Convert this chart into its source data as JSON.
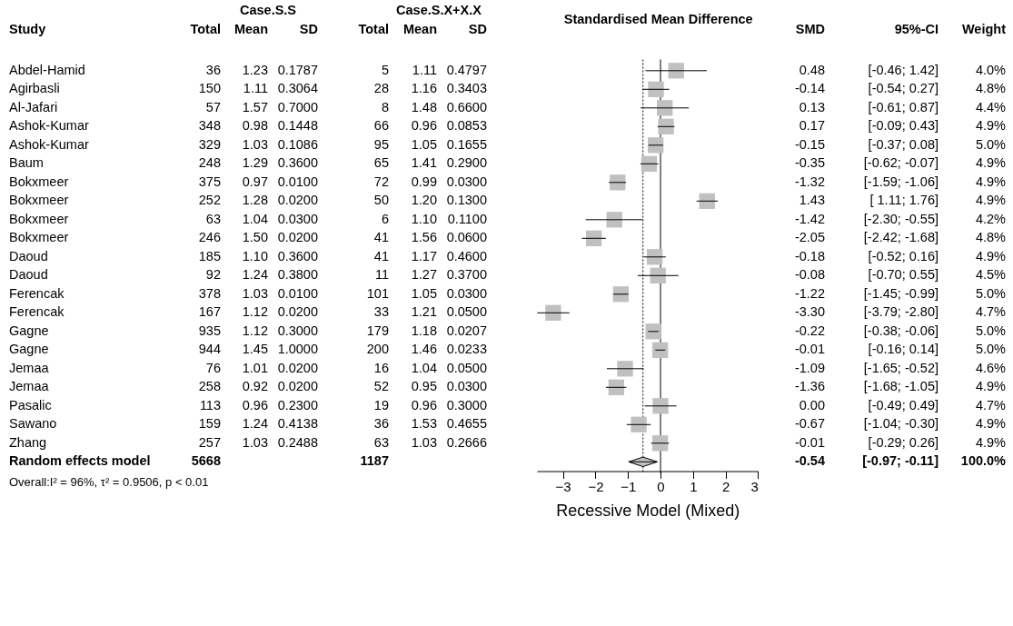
{
  "chart_data": [
    {
      "type": "other",
      "ylabel": "Study",
      "categories": [
        "Abdel-Hamid",
        "Agirbasli",
        "Al-Jafari",
        "Ashok-Kumar",
        "Ashok-Kumar",
        "Baum",
        "Bokxmeer",
        "Bokxmeer",
        "Bokxmeer",
        "Bokxmeer",
        "Daoud",
        "Daoud",
        "Ferencak",
        "Ferencak",
        "Gagne",
        "Gagne",
        "Jemaa",
        "Jemaa",
        "Pasalic",
        "Sawano",
        "Zhang",
        "Random effects model"
      ],
      "series": [
        {
          "name": "Total",
          "values": [
            36,
            150,
            57,
            348,
            329,
            248,
            375,
            252,
            63,
            246,
            185,
            92,
            378,
            167,
            935,
            944,
            76,
            258,
            113,
            159,
            257,
            5668
          ],
          "value_labels": [
            "36",
            "150",
            "57",
            "348",
            "329",
            "248",
            "375",
            "252",
            "63",
            "246",
            "185",
            "92",
            "378",
            "167",
            "935",
            "944",
            "76",
            "258",
            "113",
            "159",
            "257",
            "5668"
          ]
        },
        {
          "name": "Mean",
          "values": [
            1.23,
            1.11,
            1.57,
            0.98,
            1.03,
            1.29,
            0.97,
            1.28,
            1.04,
            1.5,
            1.1,
            1.24,
            1.03,
            1.12,
            1.12,
            1.45,
            1.01,
            0.92,
            0.96,
            1.24,
            1.03,
            null
          ],
          "value_labels": [
            "1.23",
            "1.11",
            "1.57",
            "0.98",
            "1.03",
            "1.29",
            "0.97",
            "1.28",
            "1.04",
            "1.50",
            "1.10",
            "1.24",
            "1.03",
            "1.12",
            "1.12",
            "1.45",
            "1.01",
            "0.92",
            "0.96",
            "1.24",
            "1.03",
            null
          ]
        },
        {
          "name": "SD",
          "values": [
            0.1787,
            0.3064,
            0.7,
            0.1448,
            0.1086,
            0.36,
            0.01,
            0.02,
            0.03,
            0.02,
            0.36,
            0.38,
            0.01,
            0.02,
            0.3,
            1.0,
            0.02,
            0.02,
            0.23,
            0.4138,
            0.2488,
            null
          ],
          "value_labels": [
            "0.1787",
            "0.3064",
            "0.7000",
            "0.1448",
            "0.1086",
            "0.3600",
            "0.0100",
            "0.0200",
            "0.0300",
            "0.0200",
            "0.3600",
            "0.3800",
            "0.0100",
            "0.0200",
            "0.3000",
            "1.0000",
            "0.0200",
            "0.0200",
            "0.2300",
            "0.4138",
            "0.2488",
            null
          ]
        },
        {
          "name": "Total",
          "values": [
            5,
            28,
            8,
            66,
            95,
            65,
            72,
            50,
            6,
            41,
            41,
            11,
            101,
            33,
            179,
            200,
            16,
            52,
            19,
            36,
            63,
            1187
          ],
          "value_labels": [
            "5",
            "28",
            "8",
            "66",
            "95",
            "65",
            "72",
            "50",
            "6",
            "41",
            "41",
            "11",
            "101",
            "33",
            "179",
            "200",
            "16",
            "52",
            "19",
            "36",
            "63",
            "1187"
          ]
        },
        {
          "name": "Mean",
          "values": [
            1.11,
            1.16,
            1.48,
            0.96,
            1.05,
            1.41,
            0.99,
            1.2,
            1.1,
            1.56,
            1.17,
            1.27,
            1.05,
            1.21,
            1.18,
            1.46,
            1.04,
            0.95,
            0.96,
            1.53,
            1.03,
            null
          ],
          "value_labels": [
            "1.11",
            "1.16",
            "1.48",
            "0.96",
            "1.05",
            "1.41",
            "0.99",
            "1.20",
            "1.10",
            "1.56",
            "1.17",
            "1.27",
            "1.05",
            "1.21",
            "1.18",
            "1.46",
            "1.04",
            "0.95",
            "0.96",
            "1.53",
            "1.03",
            null
          ]
        },
        {
          "name": "SD",
          "values": [
            0.4797,
            0.3403,
            0.66,
            0.0853,
            0.1655,
            0.29,
            0.03,
            0.13,
            0.11,
            0.06,
            0.46,
            0.37,
            0.03,
            0.05,
            0.0207,
            0.0233,
            0.05,
            0.03,
            0.3,
            0.4655,
            0.2666,
            null
          ],
          "value_labels": [
            "0.4797",
            "0.3403",
            "0.6600",
            "0.0853",
            "0.1655",
            "0.2900",
            "0.0300",
            "0.1300",
            "0.1100",
            "0.0600",
            "0.4600",
            "0.3700",
            "0.0300",
            "0.0500",
            "0.0207",
            "0.0233",
            "0.0500",
            "0.0300",
            "0.3000",
            "0.4655",
            "0.2666",
            null
          ]
        },
        {
          "name": "SMD",
          "values": [
            0.48,
            -0.14,
            0.13,
            0.17,
            -0.15,
            -0.35,
            -1.32,
            1.43,
            -1.42,
            -2.05,
            -0.18,
            -0.08,
            -1.22,
            -3.3,
            -0.22,
            -0.01,
            -1.09,
            -1.36,
            0.0,
            -0.67,
            -0.01,
            -0.54
          ],
          "value_labels": [
            "0.48",
            "-0.14",
            "0.13",
            "0.17",
            "-0.15",
            "-0.35",
            "-1.32",
            "1.43",
            "-1.42",
            "-2.05",
            "-0.18",
            "-0.08",
            "-1.22",
            "-3.30",
            "-0.22",
            "-0.01",
            "-1.09",
            "-1.36",
            "0.00",
            "-0.67",
            "-0.01",
            "-0.54"
          ]
        },
        {
          "name": "95%-CI",
          "values": [
            null,
            null,
            null,
            null,
            null,
            null,
            null,
            null,
            null,
            null,
            null,
            null,
            null,
            null,
            null,
            null,
            null,
            null,
            null,
            null,
            null,
            null
          ],
          "value_labels": [
            "[-0.46; 1.42]",
            "[-0.54; 0.27]",
            "[-0.61; 0.87]",
            "[-0.09; 0.43]",
            "[-0.37; 0.08]",
            "[-0.62; -0.07]",
            "[-1.59; -1.06]",
            "[ 1.11; 1.76]",
            "[-2.30; -0.55]",
            "[-2.42; -1.68]",
            "[-0.52; 0.16]",
            "[-0.70; 0.55]",
            "[-1.45; -0.99]",
            "[-3.79; -2.80]",
            "[-0.38; -0.06]",
            "[-0.16; 0.14]",
            "[-1.65; -0.52]",
            "[-1.68; -1.05]",
            "[-0.49; 0.49]",
            "[-1.04; -0.30]",
            "[-0.29; 0.26]",
            "[-0.97; -0.11]"
          ]
        },
        {
          "name": "Weight",
          "values": [
            4.0,
            4.8,
            4.4,
            4.9,
            5.0,
            4.9,
            4.9,
            4.9,
            4.2,
            4.8,
            4.9,
            4.5,
            5.0,
            4.7,
            5.0,
            5.0,
            4.6,
            4.9,
            4.7,
            4.9,
            4.9,
            100.0
          ],
          "value_labels": [
            "4.0%",
            "4.8%",
            "4.4%",
            "4.9%",
            "5.0%",
            "4.9%",
            "4.9%",
            "4.9%",
            "4.2%",
            "4.8%",
            "4.9%",
            "4.5%",
            "5.0%",
            "4.7%",
            "5.0%",
            "5.0%",
            "4.6%",
            "4.9%",
            "4.7%",
            "4.9%",
            "4.9%",
            "100.0%"
          ]
        }
      ],
      "annotations": [
        "Case.S.S",
        "Case.S.X+X.X",
        "Overall:I² = 96%, τ² = 0.9506, p < 0.01"
      ]
    },
    {
      "type": "scatter",
      "title": "Standardised Mean Difference",
      "xlabel": "Recessive Model (Mixed)",
      "orientation": "horizontal",
      "tick_labels": "x",
      "grid": false,
      "categories": [
        null,
        null,
        null,
        null,
        null,
        null,
        null,
        null,
        null,
        null,
        null,
        null,
        null,
        null,
        null,
        null,
        null,
        null,
        null,
        null,
        null,
        null
      ],
      "xlim": [
        -3.8,
        3
      ],
      "xticks": [
        -3,
        -2,
        -1,
        0,
        1,
        2,
        3
      ],
      "series": [
        {
          "color": "#c0c0c0",
          "marker": "square",
          "values": [
            0.48,
            -0.14,
            0.13,
            0.17,
            -0.15,
            -0.35,
            -1.32,
            1.43,
            -1.42,
            -2.05,
            -0.18,
            -0.08,
            -1.22,
            -3.3,
            -0.22,
            -0.01,
            -1.09,
            -1.36,
            0.0,
            -0.67,
            -0.01,
            null
          ],
          "errors": [
            [
              -0.46,
              1.42
            ],
            [
              -0.54,
              0.27
            ],
            [
              -0.61,
              0.87
            ],
            [
              -0.09,
              0.43
            ],
            [
              -0.37,
              0.08
            ],
            [
              -0.62,
              -0.07
            ],
            [
              -1.59,
              -1.06
            ],
            [
              1.11,
              1.76
            ],
            [
              -2.3,
              -0.55
            ],
            [
              -2.42,
              -1.68
            ],
            [
              -0.52,
              0.16
            ],
            [
              -0.7,
              0.55
            ],
            [
              -1.45,
              -0.99
            ],
            [
              -3.79,
              -2.8
            ],
            [
              -0.38,
              -0.06
            ],
            [
              -0.16,
              0.14
            ],
            [
              -1.65,
              -0.52
            ],
            [
              -1.68,
              -1.05
            ],
            [
              -0.49,
              0.49
            ],
            [
              -1.04,
              -0.3
            ],
            [
              -0.29,
              0.26
            ],
            null
          ]
        },
        {
          "color": "#c0c0c0",
          "marker": "diamond",
          "values": [
            null,
            null,
            null,
            null,
            null,
            null,
            null,
            null,
            null,
            null,
            null,
            null,
            null,
            null,
            null,
            null,
            null,
            null,
            null,
            null,
            null,
            -0.54
          ],
          "errors": [
            null,
            null,
            null,
            null,
            null,
            null,
            null,
            null,
            null,
            null,
            null,
            null,
            null,
            null,
            null,
            null,
            null,
            null,
            null,
            null,
            null,
            [
              -0.97,
              -0.11
            ]
          ]
        }
      ],
      "ref_lines": [
        {
          "axis": "x",
          "value": 0,
          "line_style": "solid",
          "color": "#000000"
        },
        {
          "axis": "x",
          "value": -0.54,
          "line_style": "dotted",
          "color": "#000000"
        }
      ]
    }
  ]
}
